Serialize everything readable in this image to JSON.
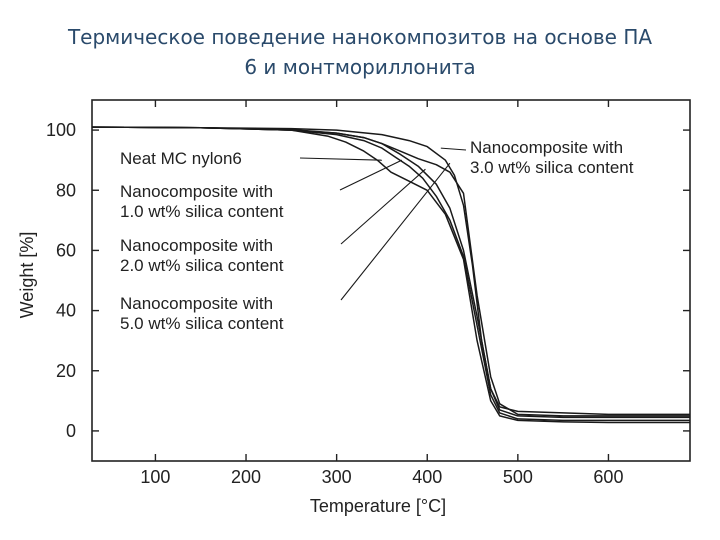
{
  "title_line1": "Термическое поведение нанокомпозитов на основе ПА",
  "title_line2": "6 и монтмориллонита",
  "chart_data": {
    "type": "line",
    "xlabel": "Temperature [°C]",
    "ylabel": "Weight [%]",
    "xlim": [
      30,
      690
    ],
    "ylim": [
      -10,
      110
    ],
    "xticks": [
      100,
      200,
      300,
      400,
      500,
      600
    ],
    "yticks": [
      0,
      20,
      40,
      60,
      80,
      100
    ],
    "grid": false,
    "series": [
      {
        "name": "Neat MC nylon6",
        "x": [
          30,
          150,
          250,
          290,
          310,
          330,
          345,
          360,
          380,
          400,
          420,
          440,
          455,
          470,
          480,
          500,
          550,
          600,
          690
        ],
        "y": [
          101,
          100.8,
          100,
          98,
          96,
          93,
          90,
          86,
          83,
          80,
          72,
          57,
          30,
          10,
          5,
          3.5,
          3,
          2.8,
          2.8
        ]
      },
      {
        "name": "Nanocomposite with 1.0 wt% silica content",
        "x": [
          30,
          150,
          250,
          300,
          330,
          350,
          365,
          380,
          395,
          410,
          425,
          440,
          455,
          470,
          480,
          500,
          550,
          600,
          690
        ],
        "y": [
          101,
          100.8,
          100,
          98.5,
          96.5,
          94,
          91,
          88,
          84,
          78,
          70,
          58,
          35,
          12,
          6,
          4,
          3.5,
          3.5,
          3.5
        ]
      },
      {
        "name": "Nanocomposite with 2.0 wt% silica content",
        "x": [
          30,
          150,
          250,
          300,
          330,
          350,
          370,
          390,
          410,
          425,
          440,
          455,
          470,
          480,
          500,
          550,
          600,
          690
        ],
        "y": [
          101,
          100.8,
          100.2,
          99,
          97.5,
          95.5,
          92,
          88,
          82,
          74,
          60,
          38,
          14,
          7,
          5,
          4.5,
          4.5,
          4.5
        ]
      },
      {
        "name": "Nanocomposite with 3.0 wt% silica content",
        "x": [
          30,
          150,
          250,
          300,
          350,
          380,
          400,
          420,
          430,
          440,
          450,
          460,
          470,
          480,
          500,
          550,
          600,
          690
        ],
        "y": [
          101,
          100.8,
          100.5,
          100,
          98.5,
          96.5,
          94.5,
          90,
          85,
          75,
          55,
          30,
          14,
          8,
          6.5,
          6,
          5.5,
          5.5
        ]
      },
      {
        "name": "Nanocomposite with 5.0 wt% silica content",
        "x": [
          30,
          150,
          250,
          300,
          330,
          350,
          370,
          390,
          410,
          425,
          440,
          455,
          470,
          480,
          500,
          550,
          600,
          690
        ],
        "y": [
          101,
          100.8,
          100,
          99,
          97.5,
          95.5,
          93,
          90.5,
          88.5,
          86,
          79,
          45,
          18,
          9,
          5.5,
          5,
          5,
          5
        ]
      }
    ],
    "annotations": [
      {
        "lines": [
          "Neat MC nylon6"
        ],
        "target_x": 350,
        "target_y": 90
      },
      {
        "lines": [
          "Nanocomposite with",
          "1.0 wt% silica content"
        ],
        "target_x": 372,
        "target_y": 90
      },
      {
        "lines": [
          "Nanocomposite with",
          "2.0 wt% silica content"
        ],
        "target_x": 398,
        "target_y": 87
      },
      {
        "lines": [
          "Nanocomposite with",
          "3.0 wt% silica content"
        ],
        "target_x": 415,
        "target_y": 94
      },
      {
        "lines": [
          "Nanocomposite with",
          "5.0 wt% silica content"
        ],
        "target_x": 425,
        "target_y": 89
      }
    ]
  }
}
